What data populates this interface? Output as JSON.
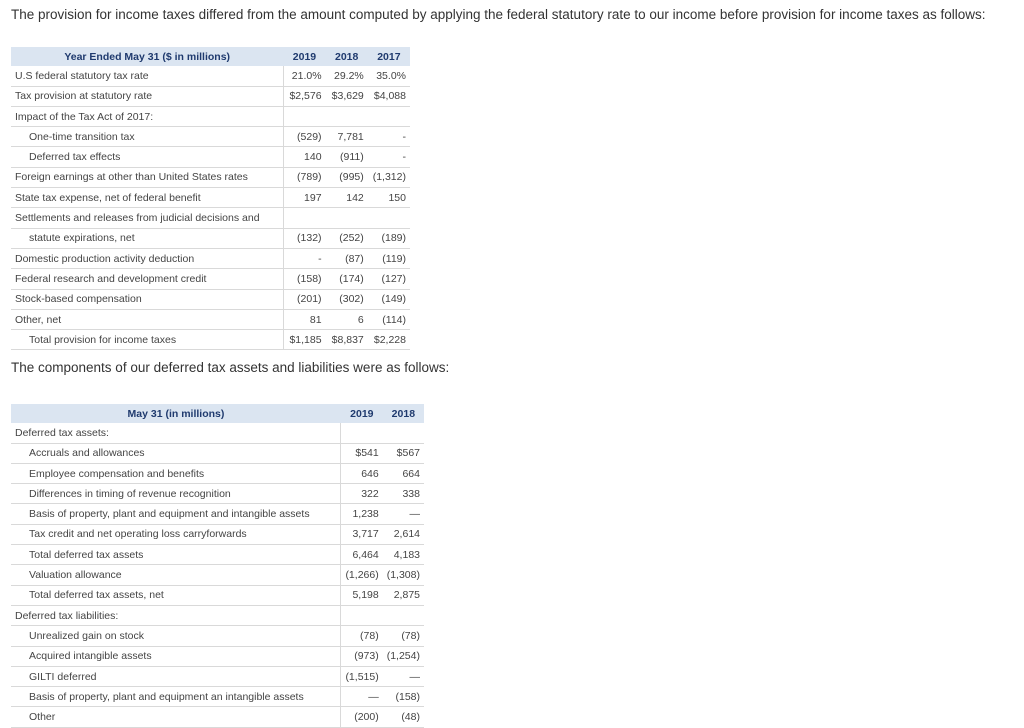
{
  "intro_text": "The provision for income taxes differed from the amount computed by applying the federal statutory rate to our income before provision for income taxes as follows:",
  "table1": {
    "header": "Year Ended May 31 ($ in millions)",
    "years": [
      "2019",
      "2018",
      "2017"
    ],
    "rows": [
      {
        "label": "U.S federal statutory tax rate",
        "v": [
          "21.0%",
          "29.2%",
          "35.0%"
        ]
      },
      {
        "label": "Tax provision at statutory rate",
        "v": [
          "$2,576",
          "$3,629",
          "$4,088"
        ]
      },
      {
        "label": "Impact of the Tax Act of 2017:",
        "v": [
          "",
          "",
          ""
        ]
      },
      {
        "label": "One-time transition tax",
        "v": [
          "(529)",
          "7,781",
          "-"
        ]
      },
      {
        "label": "Deferred tax effects",
        "v": [
          "140",
          "(911)",
          "-"
        ]
      },
      {
        "label": "Foreign earnings at other than United States rates",
        "v": [
          "(789)",
          "(995)",
          "(1,312)"
        ]
      },
      {
        "label": "State tax expense, net of federal benefit",
        "v": [
          "197",
          "142",
          "150"
        ]
      },
      {
        "label": "Settlements and releases from judicial decisions and",
        "v": [
          "",
          "",
          ""
        ]
      },
      {
        "label": "statute expirations, net",
        "v": [
          "(132)",
          "(252)",
          "(189)"
        ]
      },
      {
        "label": "Domestic production activity deduction",
        "v": [
          "-",
          "(87)",
          "(119)"
        ]
      },
      {
        "label": "Federal research and development credit",
        "v": [
          "(158)",
          "(174)",
          "(127)"
        ]
      },
      {
        "label": "Stock-based compensation",
        "v": [
          "(201)",
          "(302)",
          "(149)"
        ]
      },
      {
        "label": "Other, net",
        "v": [
          "81",
          "6",
          "(114)"
        ]
      },
      {
        "label": "Total provision for income taxes",
        "v": [
          "$1,185",
          "$8,837",
          "$2,228"
        ]
      }
    ]
  },
  "components_text": "The components of our deferred tax assets and liabilities were as follows:",
  "table2": {
    "header": "May 31 (in millions)",
    "years": [
      "2019",
      "2018"
    ],
    "rows": [
      {
        "label": "Deferred tax assets:",
        "v": [
          "",
          ""
        ]
      },
      {
        "label": "Accruals and allowances",
        "v": [
          "$541",
          "$567"
        ]
      },
      {
        "label": "Employee compensation and benefits",
        "v": [
          "646",
          "664"
        ]
      },
      {
        "label": "Differences in timing of revenue recognition",
        "v": [
          "322",
          "338"
        ]
      },
      {
        "label": "Basis of property, plant and equipment and intangible assets",
        "v": [
          "1,238",
          "—"
        ]
      },
      {
        "label": "Tax credit and net operating loss carryforwards",
        "v": [
          "3,717",
          "2,614"
        ]
      },
      {
        "label": "Total deferred tax assets",
        "v": [
          "6,464",
          "4,183"
        ]
      },
      {
        "label": "Valuation allowance",
        "v": [
          "(1,266)",
          "(1,308)"
        ]
      },
      {
        "label": "Total deferred tax assets, net",
        "v": [
          "5,198",
          "2,875"
        ]
      },
      {
        "label": "Deferred tax liabilities:",
        "v": [
          "",
          ""
        ]
      },
      {
        "label": "Unrealized gain on stock",
        "v": [
          "(78)",
          "(78)"
        ]
      },
      {
        "label": "Acquired intangible assets",
        "v": [
          "(973)",
          "(1,254)"
        ]
      },
      {
        "label": "GILTI deferred",
        "v": [
          "(1,515)",
          "—"
        ]
      },
      {
        "label": "Basis of property, plant and equipment an intangible assets",
        "v": [
          "—",
          "(158)"
        ]
      },
      {
        "label": "Other",
        "v": [
          "(200)",
          "(48)"
        ]
      }
    ]
  }
}
